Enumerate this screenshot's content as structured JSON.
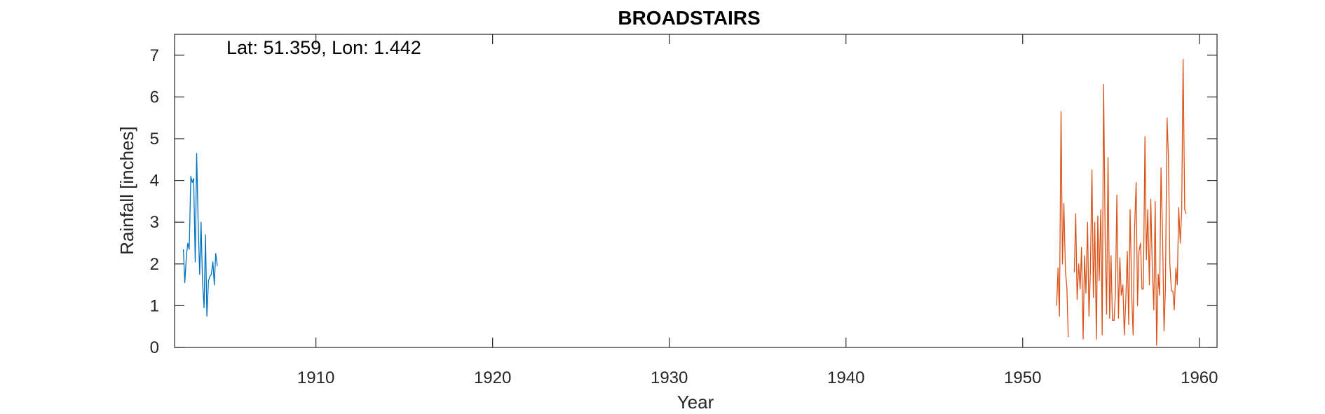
{
  "chart_data": {
    "type": "line",
    "title": "BROADSTAIRS",
    "xlabel": "Year",
    "ylabel": "Rainfall [inches]",
    "annotation": "Lat: 51.359, Lon: 1.442",
    "xlim": [
      1902.0,
      1961.0
    ],
    "ylim": [
      0,
      7.5
    ],
    "xticks": [
      1910,
      1920,
      1930,
      1940,
      1950,
      1960
    ],
    "yticks": [
      0,
      1,
      2,
      3,
      4,
      5,
      6,
      7
    ],
    "grid": false,
    "box": true,
    "series": [
      {
        "color": "#0072BD",
        "x": [
          1902.5,
          1902.58,
          1902.67,
          1902.75,
          1902.83,
          1902.92,
          1903.0,
          1903.08,
          1903.17,
          1903.25,
          1903.33,
          1903.42,
          1903.5,
          1903.58,
          1903.67,
          1903.75,
          1903.83,
          1903.92,
          1904.0,
          1904.08,
          1904.17,
          1904.25,
          1904.33,
          1904.42
        ],
        "y": [
          2.35,
          1.55,
          2.2,
          2.5,
          2.35,
          4.1,
          3.95,
          4.05,
          2.05,
          4.65,
          3.1,
          1.75,
          3.0,
          1.6,
          0.95,
          2.7,
          0.75,
          1.6,
          1.7,
          1.75,
          2.05,
          1.5,
          2.25,
          1.95
        ]
      },
      {
        "color": "#D95319",
        "x": [
          1951.92,
          1952.0,
          1952.08,
          1952.17,
          1952.25,
          1952.33,
          1952.42,
          1952.5,
          1952.58,
          1952.67,
          1952.75,
          1952.83,
          1952.92,
          1953.0,
          1953.08,
          1953.17,
          1953.25,
          1953.33,
          1953.42,
          1953.5,
          1953.58,
          1953.67,
          1953.75,
          1953.83,
          1953.92,
          1954.0,
          1954.08,
          1954.17,
          1954.25,
          1954.33,
          1954.42,
          1954.5,
          1954.58,
          1954.67,
          1954.75,
          1954.83,
          1954.92,
          1955.0,
          1955.08,
          1955.17,
          1955.25,
          1955.33,
          1955.42,
          1955.5,
          1955.58,
          1955.67,
          1955.75,
          1955.83,
          1955.92,
          1956.0,
          1956.08,
          1956.17,
          1956.25,
          1956.33,
          1956.42,
          1956.5,
          1956.58,
          1956.67,
          1956.75,
          1956.83,
          1956.92,
          1957.0,
          1957.08,
          1957.17,
          1957.25,
          1957.33,
          1957.42,
          1957.5,
          1957.58,
          1957.67,
          1957.75,
          1957.83,
          1957.92,
          1958.0,
          1958.08,
          1958.17,
          1958.25,
          1958.33,
          1958.42,
          1958.5,
          1958.58,
          1958.67,
          1958.75,
          1958.83,
          1958.92,
          1959.0,
          1959.08,
          1959.17,
          1959.25,
          1959.33,
          1959.42,
          1959.5,
          1959.58,
          1959.67,
          1959.75,
          1959.83,
          1959.92,
          1960.0,
          1960.08,
          1960.17,
          1960.25,
          1960.33,
          1960.42
        ],
        "y": [
          1.0,
          1.9,
          0.75,
          5.65,
          2.0,
          3.45,
          1.8,
          1.45,
          0.25,
          null,
          null,
          null,
          1.8,
          3.2,
          1.15,
          2.0,
          1.4,
          2.4,
          0.2,
          2.2,
          1.3,
          3.0,
          0.75,
          1.8,
          4.25,
          1.2,
          3.0,
          0.2,
          3.15,
          1.6,
          3.3,
          0.3,
          6.3,
          2.5,
          0.8,
          4.55,
          0.7,
          2.2,
          0.65,
          0.65,
          1.3,
          3.65,
          0.7,
          2.15,
          1.25,
          1.5,
          0.3,
          1.05,
          2.3,
          0.55,
          3.3,
          1.25,
          0.3,
          2.8,
          3.95,
          1.0,
          2.3,
          2.5,
          1.4,
          1.4,
          5.05,
          2.1,
          3.3,
          1.5,
          3.55,
          2.0,
          0.9,
          3.5,
          0.05,
          1.75,
          1.25,
          4.3,
          2.6,
          0.4,
          1.4,
          5.5,
          4.55,
          2.0,
          1.35,
          1.35,
          0.9,
          1.9,
          1.5,
          3.35,
          2.5,
          3.3,
          6.9,
          3.3,
          3.2,
          null,
          null,
          null,
          null,
          null,
          null,
          null,
          null,
          null,
          null,
          null,
          null,
          null,
          null
        ]
      }
    ]
  }
}
